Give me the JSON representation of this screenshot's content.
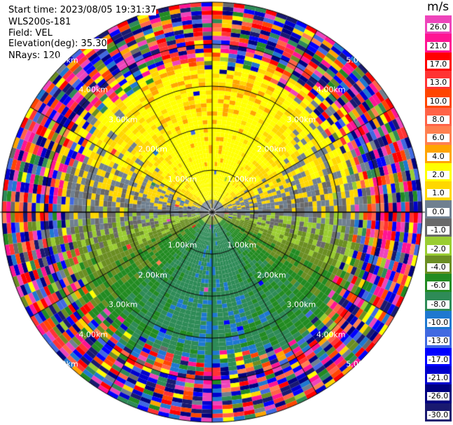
{
  "header": {
    "start_time": "Start time: 2023/08/05 19:31:37",
    "instrument": "WLS200s-181",
    "field": "Field: VEL",
    "elevation": "Elevation(deg): 35.30",
    "nrays": "NRays: 120"
  },
  "chart_data": {
    "type": "heatmap",
    "projection": "polar PPI",
    "field": "VEL",
    "nrays": 120,
    "max_range_km": 5,
    "range_ring_labels": [
      "1.00km",
      "2.00km",
      "3.00km",
      "4.00km",
      "5.00km"
    ],
    "spoke_interval_deg": 30,
    "colorbar": {
      "units": "m/s",
      "ticks": [
        "26.0",
        "21.0",
        "17.0",
        "13.0",
        "10.0",
        "8.0",
        "6.0",
        "4.0",
        "2.0",
        "1.0",
        "0.0",
        "-1.0",
        "-2.0",
        "-4.0",
        "-6.0",
        "-8.0",
        "-10.0",
        "-13.0",
        "-17.0",
        "-21.0",
        "-26.0",
        "-30.0"
      ],
      "colors": [
        "#ee44bb",
        "#ff1493",
        "#ff0000",
        "#ff3333",
        "#ff4500",
        "#ff6347",
        "#ff8050",
        "#ffa500",
        "#ffff00",
        "#ffd700",
        "#708090",
        "#696969",
        "#9acd32",
        "#6b8e23",
        "#228b22",
        "#2e8b57",
        "#1e78d0",
        "#4169e1",
        "#0000ff",
        "#0000cd",
        "#000080",
        "#191970"
      ]
    }
  }
}
